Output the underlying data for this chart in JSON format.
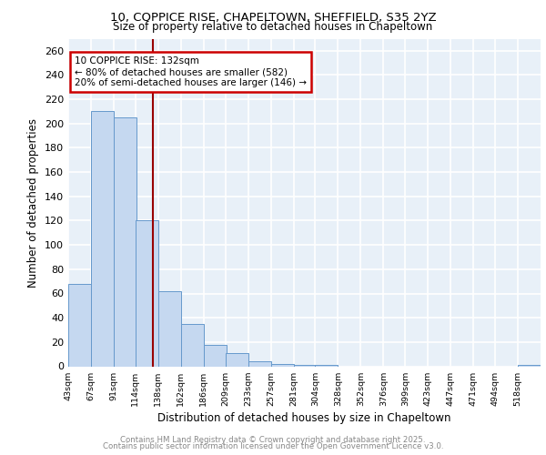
{
  "title1": "10, COPPICE RISE, CHAPELTOWN, SHEFFIELD, S35 2YZ",
  "title2": "Size of property relative to detached houses in Chapeltown",
  "xlabel": "Distribution of detached houses by size in Chapeltown",
  "ylabel": "Number of detached properties",
  "bar_edges": [
    43,
    67,
    91,
    114,
    138,
    162,
    186,
    209,
    233,
    257,
    281,
    304,
    328,
    352,
    376,
    399,
    423,
    447,
    471,
    494,
    518
  ],
  "bar_heights": [
    68,
    210,
    205,
    120,
    62,
    35,
    18,
    11,
    4,
    2,
    1,
    1,
    0,
    0,
    0,
    0,
    0,
    0,
    0,
    0,
    1
  ],
  "bar_color": "#c5d8f0",
  "bar_edge_color": "#6699cc",
  "bg_color": "#e8f0f8",
  "grid_color": "#d0d8e8",
  "property_size": 132,
  "vline_color": "#990000",
  "annotation_line1": "10 COPPICE RISE: 132sqm",
  "annotation_line2": "← 80% of detached houses are smaller (582)",
  "annotation_line3": "20% of semi-detached houses are larger (146) →",
  "annotation_box_color": "#cc0000",
  "ylim": [
    0,
    270
  ],
  "tick_labels": [
    "43sqm",
    "67sqm",
    "91sqm",
    "114sqm",
    "138sqm",
    "162sqm",
    "186sqm",
    "209sqm",
    "233sqm",
    "257sqm",
    "281sqm",
    "304sqm",
    "328sqm",
    "352sqm",
    "376sqm",
    "399sqm",
    "423sqm",
    "447sqm",
    "471sqm",
    "494sqm",
    "518sqm"
  ],
  "footer1": "Contains HM Land Registry data © Crown copyright and database right 2025.",
  "footer2": "Contains public sector information licensed under the Open Government Licence v3.0."
}
